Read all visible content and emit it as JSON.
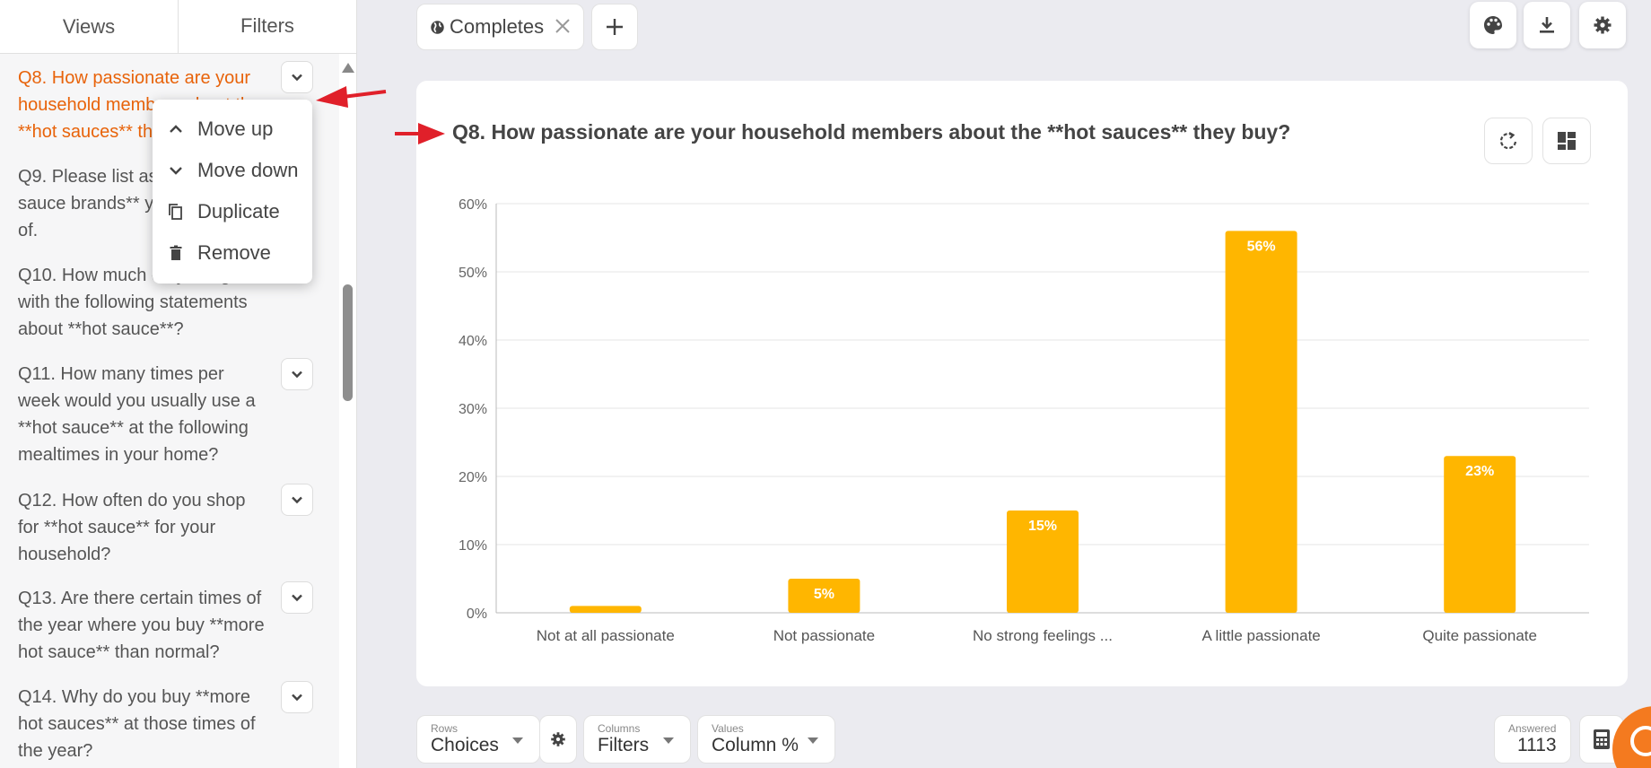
{
  "tabs": {
    "views": "Views",
    "filters": "Filters"
  },
  "questions": [
    {
      "id": "q8",
      "text": "Q8. How passionate are your household members about the **hot sauces** they buy?",
      "active": true,
      "lines": [
        "Q8. How passionate are your",
        "household members about the",
        "**hot sauces** they buy?"
      ]
    },
    {
      "id": "q9",
      "lines": [
        "Q9. Please list as many **hot",
        "sauce brands** you have heard",
        "of."
      ]
    },
    {
      "id": "q10",
      "lines": [
        "Q10. How much do you agree",
        "with the following statements",
        "about **hot sauce**?"
      ]
    },
    {
      "id": "q11",
      "lines": [
        "Q11. How many times per",
        "week would you usually use a",
        "**hot sauce** at the following",
        "mealtimes in your home?"
      ]
    },
    {
      "id": "q12",
      "lines": [
        "Q12. How often do you shop",
        "for **hot sauce** for your",
        "household?"
      ]
    },
    {
      "id": "q13",
      "lines": [
        "Q13. Are there certain times of",
        "the year where you buy **more",
        "hot sauce** than normal?"
      ]
    },
    {
      "id": "q14",
      "lines": [
        "Q14. Why do you buy **more",
        "hot sauces** at those times of",
        "the year?"
      ]
    }
  ],
  "context_menu": {
    "move_up": "Move up",
    "move_down": "Move down",
    "duplicate": "Duplicate",
    "remove": "Remove"
  },
  "topbar": {
    "chip_label": "Completes"
  },
  "chart_title": "Q8. How passionate are your household members about the **hot sauces** they buy?",
  "chart_data": {
    "type": "bar",
    "categories": [
      "Not at all passionate",
      "Not passionate",
      "No strong feelings ...",
      "A little passionate",
      "Quite passionate"
    ],
    "values": [
      1,
      5,
      15,
      56,
      23
    ],
    "data_labels": [
      "",
      "5%",
      "15%",
      "56%",
      "23%"
    ],
    "ylim": [
      0,
      60
    ],
    "yticks": [
      0,
      10,
      20,
      30,
      40,
      50,
      60
    ],
    "ytick_labels": [
      "0%",
      "10%",
      "20%",
      "30%",
      "40%",
      "50%",
      "60%"
    ],
    "grid": true,
    "bar_color": "#ffb600"
  },
  "bottom": {
    "rows_label": "Rows",
    "rows_value": "Choices",
    "columns_label": "Columns",
    "columns_value": "Filters",
    "values_label": "Values",
    "values_value": "Column %",
    "answered_label": "Answered",
    "answered_value": "1113"
  },
  "colors": {
    "accent": "#e8630a",
    "bar": "#ffb600",
    "annotation": "#e0202a"
  },
  "icons": [
    "globe-icon",
    "close-icon",
    "plus-icon",
    "palette-icon",
    "download-icon",
    "gear-icon",
    "refresh-icon",
    "dashboard-icon",
    "chevron-up-icon",
    "chevron-down-icon",
    "duplicate-icon",
    "trash-icon",
    "calculator-icon"
  ]
}
